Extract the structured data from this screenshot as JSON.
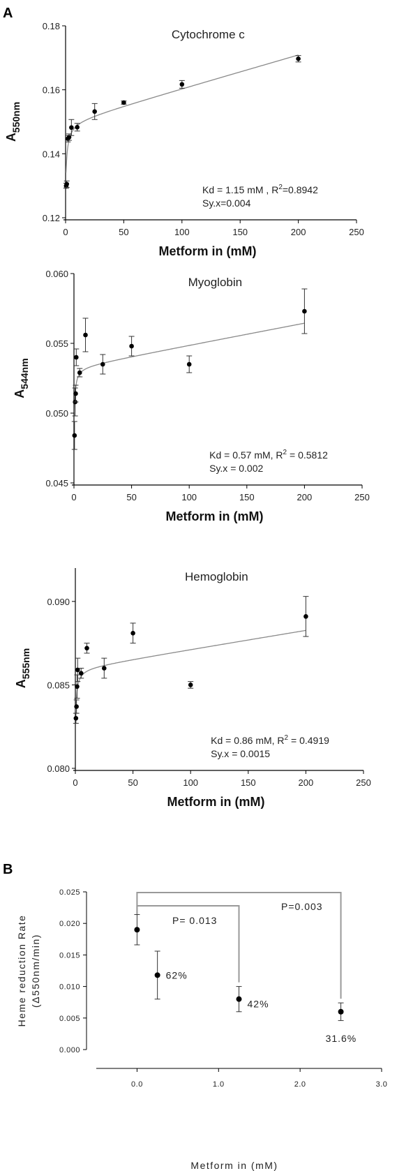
{
  "panel_labels": {
    "a": "A",
    "b": "B"
  },
  "chart_data": [
    {
      "type": "scatter",
      "title": "Cytochrome c",
      "xlabel": "Metform in (mM)",
      "ylabel": {
        "base": "A",
        "sub": "550nm"
      },
      "xlim": [
        0,
        250
      ],
      "ylim": [
        0.12,
        0.18
      ],
      "xticks": [
        0,
        50,
        100,
        150,
        200,
        250
      ],
      "yticks": [
        "0.12",
        "0.14",
        "0.16",
        "0.18"
      ],
      "points": [
        {
          "x": 0.5,
          "y": 0.13,
          "err": 0.0008
        },
        {
          "x": 1,
          "y": 0.1305,
          "err": 0.001
        },
        {
          "x": 2,
          "y": 0.1447,
          "err": 0.001
        },
        {
          "x": 3,
          "y": 0.1452,
          "err": 0.001
        },
        {
          "x": 5,
          "y": 0.1482,
          "err": 0.0025
        },
        {
          "x": 10,
          "y": 0.1483,
          "err": 0.0012
        },
        {
          "x": 25,
          "y": 0.1532,
          "err": 0.0025
        },
        {
          "x": 50,
          "y": 0.156,
          "err": 0.0005
        },
        {
          "x": 100,
          "y": 0.1617,
          "err": 0.0012
        },
        {
          "x": 200,
          "y": 0.1697,
          "err": 0.001
        }
      ],
      "fit": {
        "bmax": 0.0215,
        "kd": 1.15,
        "ns": 0.000105,
        "c": 0.1285
      },
      "annotation": {
        "line1_pre": "Kd = 1.15 mM , R",
        "line1_sup": "2",
        "line1_post": "=0.8942",
        "line2": "Sy.x=0.004"
      }
    },
    {
      "type": "scatter",
      "title": "Myoglobin",
      "xlabel": "Metform in (mM)",
      "ylabel": {
        "base": "A",
        "sub": "544nm"
      },
      "xlim": [
        0,
        250
      ],
      "ylim": [
        0.045,
        0.06
      ],
      "xticks": [
        0,
        50,
        100,
        150,
        200,
        250
      ],
      "yticks": [
        "0.045",
        "0.050",
        "0.055",
        "0.060"
      ],
      "points": [
        {
          "x": 0.5,
          "y": 0.0484,
          "err": 0.001
        },
        {
          "x": 1,
          "y": 0.0508,
          "err": 0.001
        },
        {
          "x": 1.5,
          "y": 0.0514,
          "err": 0.0006
        },
        {
          "x": 2,
          "y": 0.054,
          "err": 0.0006
        },
        {
          "x": 5,
          "y": 0.0529,
          "err": 0.0003
        },
        {
          "x": 10,
          "y": 0.0556,
          "err": 0.0012
        },
        {
          "x": 25,
          "y": 0.0535,
          "err": 0.0007
        },
        {
          "x": 50,
          "y": 0.0548,
          "err": 0.0007
        },
        {
          "x": 100,
          "y": 0.0535,
          "err": 0.0006
        },
        {
          "x": 200,
          "y": 0.0573,
          "err": 0.0016
        }
      ],
      "fit": {
        "bmax": 0.0055,
        "kd": 0.57,
        "ns": 1.58e-05,
        "c": 0.0478
      },
      "annotation": {
        "line1_pre": "Kd = 0.57 mM, R",
        "line1_sup": "2",
        "line1_post": " = 0.5812",
        "line2": "Sy.x = 0.002"
      }
    },
    {
      "type": "scatter",
      "title": "Hemoglobin",
      "xlabel": "Metform in (mM)",
      "ylabel": {
        "base": "A",
        "sub": "555nm"
      },
      "xlim": [
        0,
        250
      ],
      "ylim": [
        0.08,
        0.092
      ],
      "xticks": [
        0,
        50,
        100,
        150,
        200,
        250
      ],
      "yticks": [
        "0.080",
        "0.085",
        "0.090"
      ],
      "points": [
        {
          "x": 0.5,
          "y": 0.083,
          "err": 0.0003
        },
        {
          "x": 1,
          "y": 0.0837,
          "err": 0.0004
        },
        {
          "x": 1.5,
          "y": 0.0849,
          "err": 0.0007
        },
        {
          "x": 2,
          "y": 0.0859,
          "err": 0.0007
        },
        {
          "x": 5,
          "y": 0.0857,
          "err": 0.0003
        },
        {
          "x": 10,
          "y": 0.0872,
          "err": 0.0003
        },
        {
          "x": 25,
          "y": 0.086,
          "err": 0.0006
        },
        {
          "x": 50,
          "y": 0.0881,
          "err": 0.0006
        },
        {
          "x": 100,
          "y": 0.085,
          "err": 0.0002
        },
        {
          "x": 200,
          "y": 0.0891,
          "err": 0.0012
        }
      ],
      "fit": {
        "bmax": 0.0038,
        "kd": 0.86,
        "ns": 1.14e-05,
        "c": 0.0822
      },
      "annotation": {
        "line1_pre": "Kd = 0.86 mM, R",
        "line1_sup": "2",
        "line1_post": " = 0.4919",
        "line2": "Sy.x = 0.0015"
      }
    },
    {
      "type": "scatter",
      "title": "",
      "xlabel": "Metform in (mM)",
      "ylabel": {
        "line1": "Heme reduction Rate",
        "line2": "(Δ550nm/min)"
      },
      "xlim": [
        -0.5,
        3.0
      ],
      "ylim": [
        0,
        0.025
      ],
      "xticks": [
        "0.0",
        "1.0",
        "2.0",
        "3.0"
      ],
      "xtick_values": [
        0,
        1,
        2,
        3
      ],
      "yticks": [
        "0.000",
        "0.005",
        "0.010",
        "0.015",
        "0.020",
        "0.025"
      ],
      "points": [
        {
          "x": 0,
          "y": 0.019,
          "err": 0.0024,
          "label": ""
        },
        {
          "x": 0.25,
          "y": 0.0118,
          "err": 0.0038,
          "label": "62%"
        },
        {
          "x": 1.25,
          "y": 0.008,
          "err": 0.002,
          "label": "42%"
        },
        {
          "x": 2.5,
          "y": 0.006,
          "err": 0.0014,
          "label": "31.6%"
        }
      ],
      "brackets": [
        {
          "from": 0,
          "to": 1.25,
          "label": "P= 0.013"
        },
        {
          "from": 0,
          "to": 2.5,
          "label": "P=0.003"
        }
      ]
    }
  ]
}
